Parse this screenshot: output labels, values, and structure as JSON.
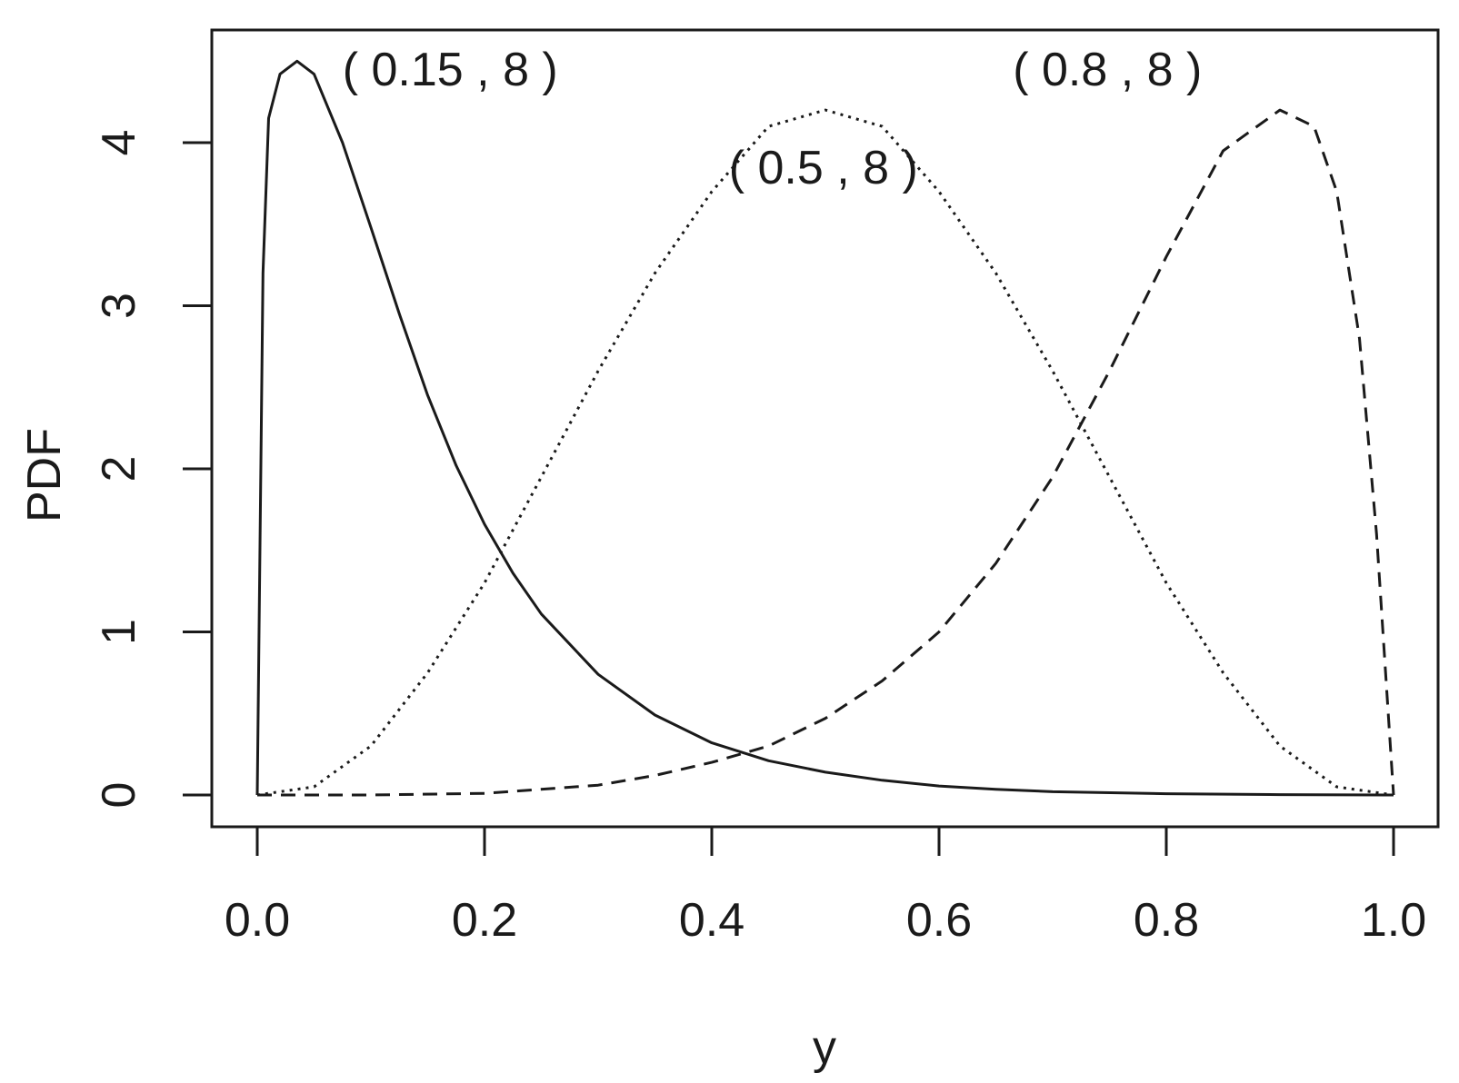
{
  "chart_data": {
    "type": "line",
    "title": "",
    "xlabel": "y",
    "ylabel": "PDF",
    "xlim": [
      0,
      1
    ],
    "ylim": [
      0,
      4.5
    ],
    "xticks": [
      0.0,
      0.2,
      0.4,
      0.6,
      0.8,
      1.0
    ],
    "xtick_labels": [
      "0.0",
      "0.2",
      "0.4",
      "0.6",
      "0.8",
      "1.0"
    ],
    "yticks": [
      0,
      1,
      2,
      3,
      4
    ],
    "ytick_labels": [
      "0",
      "1",
      "2",
      "3",
      "4"
    ],
    "grid": false,
    "legend": "none",
    "line_color": "#1a1a1a",
    "series": [
      {
        "line_style": "solid",
        "x": [
          0.0,
          0.005,
          0.01,
          0.02,
          0.035,
          0.05,
          0.075,
          0.1,
          0.125,
          0.15,
          0.175,
          0.2,
          0.225,
          0.25,
          0.3,
          0.35,
          0.4,
          0.45,
          0.5,
          0.55,
          0.6,
          0.65,
          0.7,
          0.8,
          0.9,
          1.0
        ],
        "values": [
          0.0,
          3.2,
          4.15,
          4.42,
          4.5,
          4.42,
          4.0,
          3.48,
          2.95,
          2.45,
          2.02,
          1.66,
          1.36,
          1.11,
          0.74,
          0.49,
          0.32,
          0.21,
          0.14,
          0.09,
          0.055,
          0.035,
          0.02,
          0.008,
          0.002,
          0.0
        ]
      },
      {
        "line_style": "dotted",
        "x": [
          0.0,
          0.05,
          0.1,
          0.15,
          0.2,
          0.25,
          0.3,
          0.35,
          0.4,
          0.45,
          0.5,
          0.55,
          0.6,
          0.65,
          0.7,
          0.75,
          0.8,
          0.85,
          0.9,
          0.95,
          1.0
        ],
        "values": [
          0.0,
          0.05,
          0.3,
          0.75,
          1.3,
          1.95,
          2.6,
          3.2,
          3.7,
          4.1,
          4.2,
          4.1,
          3.7,
          3.2,
          2.6,
          1.95,
          1.3,
          0.75,
          0.3,
          0.05,
          0.0
        ]
      },
      {
        "line_style": "dashed",
        "x": [
          0.0,
          0.1,
          0.2,
          0.3,
          0.35,
          0.4,
          0.45,
          0.5,
          0.55,
          0.6,
          0.65,
          0.7,
          0.75,
          0.8,
          0.85,
          0.9,
          0.93,
          0.95,
          0.97,
          0.985,
          1.0
        ],
        "values": [
          0.0,
          0.0,
          0.01,
          0.06,
          0.12,
          0.2,
          0.3,
          0.47,
          0.7,
          1.0,
          1.42,
          1.95,
          2.6,
          3.3,
          3.95,
          4.2,
          4.1,
          3.7,
          2.8,
          1.6,
          0.0
        ]
      }
    ],
    "annotations": [
      {
        "text": "( 0.15 , 8 )",
        "x": 0.075,
        "y": 4.45
      },
      {
        "text": "( 0.5 , 8 )",
        "x": 0.415,
        "y": 3.85
      },
      {
        "text": "( 0.8 , 8 )",
        "x": 0.665,
        "y": 4.45
      }
    ]
  }
}
